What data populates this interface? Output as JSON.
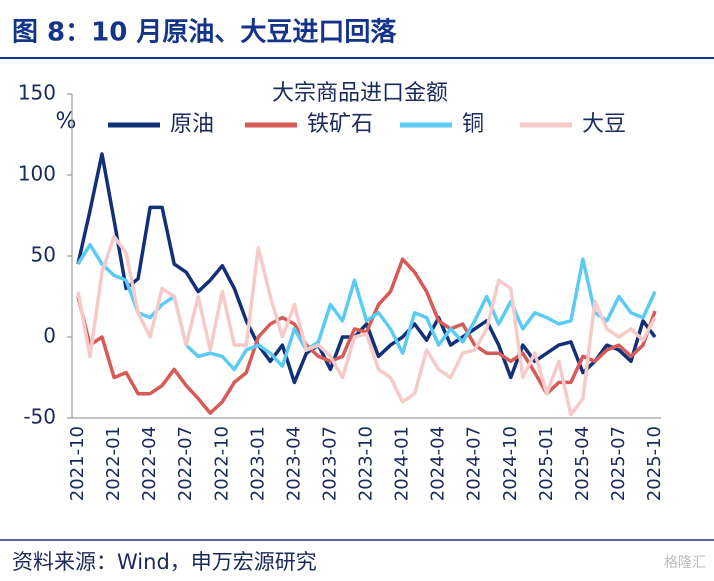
{
  "header": {
    "title": "图 8：10 月原油、大豆进口回落"
  },
  "footer": {
    "source": "资料来源：Wind，申万宏源研究",
    "watermark": "格隆汇"
  },
  "chart_data": {
    "type": "line",
    "title": "大宗商品进口金额",
    "y_label": "%",
    "categories": [
      "2021-10",
      null,
      null,
      "2022-01",
      null,
      null,
      "2022-04",
      null,
      null,
      "2022-07",
      null,
      null,
      "2022-10",
      null,
      null,
      "2023-01",
      null,
      null,
      "2023-04",
      null,
      null,
      "2023-07",
      null,
      null,
      "2023-10",
      null,
      null,
      "2024-01",
      null,
      null,
      "2024-04",
      null,
      null,
      "2024-07",
      null,
      null,
      "2024-10",
      null,
      null,
      "2025-01",
      null,
      null,
      "2025-04",
      null,
      null,
      "2025-07",
      null,
      null,
      "2025-10"
    ],
    "series": [
      {
        "name": "原油",
        "color": "#12307a",
        "values": [
          45,
          78,
          113,
          72,
          30,
          36,
          80,
          80,
          45,
          40,
          28,
          35,
          44,
          30,
          10,
          -5,
          -15,
          -5,
          -28,
          -10,
          -5,
          -20,
          0,
          0,
          8,
          -12,
          -5,
          0,
          8,
          -2,
          12,
          -5,
          0,
          5,
          10,
          -5,
          -25,
          -5,
          -15,
          -10,
          -5,
          -3,
          -22,
          -15,
          -5,
          -8,
          -15,
          10,
          0
        ]
      },
      {
        "name": "铁矿石",
        "color": "#d65a55",
        "values": [
          25,
          -5,
          0,
          -25,
          -22,
          -35,
          -35,
          -30,
          -20,
          -30,
          -38,
          -47,
          -40,
          -28,
          -22,
          0,
          8,
          12,
          8,
          -5,
          -12,
          -15,
          -12,
          5,
          3,
          20,
          28,
          48,
          40,
          28,
          10,
          5,
          8,
          -5,
          -10,
          -10,
          -15,
          -10,
          -22,
          -35,
          -28,
          -28,
          -12,
          -15,
          -8,
          -5,
          -12,
          -5,
          16
        ]
      },
      {
        "name": "铜",
        "color": "#5ccbf4",
        "values": [
          45,
          57,
          45,
          38,
          35,
          15,
          12,
          20,
          25,
          -5,
          -12,
          -10,
          -12,
          -20,
          -8,
          -5,
          -10,
          -18,
          5,
          -8,
          -3,
          20,
          10,
          35,
          10,
          15,
          5,
          -10,
          15,
          12,
          -5,
          5,
          -3,
          10,
          25,
          8,
          22,
          5,
          15,
          12,
          8,
          10,
          48,
          15,
          10,
          25,
          15,
          12,
          28
        ]
      },
      {
        "name": "大豆",
        "color": "#f7caca",
        "values": [
          28,
          -12,
          40,
          62,
          52,
          15,
          0,
          30,
          25,
          -5,
          25,
          -8,
          28,
          -5,
          -5,
          55,
          25,
          0,
          20,
          -8,
          -5,
          -12,
          -25,
          0,
          2,
          -20,
          -25,
          -40,
          -35,
          -8,
          -20,
          -25,
          -10,
          -8,
          5,
          35,
          30,
          -25,
          -10,
          -35,
          -15,
          -48,
          -38,
          22,
          5,
          0,
          5,
          -2,
          12
        ]
      }
    ],
    "ylim": [
      -50,
      150
    ],
    "yticks": [
      -50,
      0,
      50,
      100,
      150
    ],
    "legend": "top"
  }
}
